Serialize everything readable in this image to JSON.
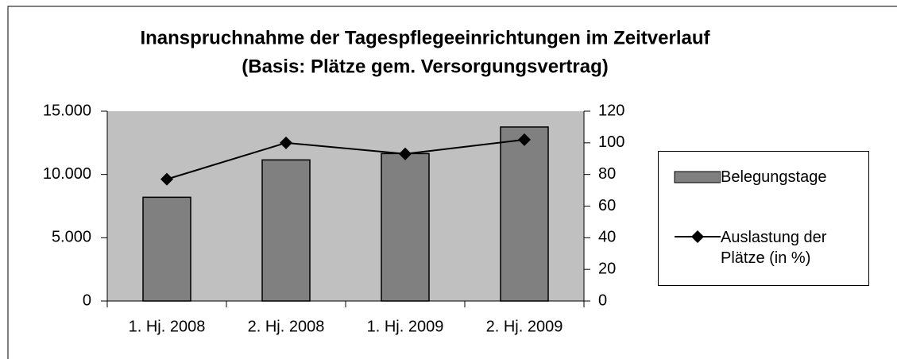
{
  "chart_data": {
    "type": "bar-line",
    "title": "Inanspruchnahme der Tagespflegeeinrichtungen im Zeitverlauf",
    "subtitle": "(Basis: Plätze gem. Versorgungsvertrag)",
    "categories": [
      "1. Hj. 2008",
      "2. Hj. 2008",
      "1. Hj. 2009",
      "2. Hj. 2009"
    ],
    "series": [
      {
        "name": "Belegungstage",
        "type": "bar",
        "color": "#808080",
        "values": [
          8200,
          11150,
          11650,
          13750
        ]
      },
      {
        "name": "Auslastung der Plätze (in %)",
        "type": "line",
        "axis": "y2",
        "color": "#000000",
        "values": [
          77,
          100,
          93,
          102
        ]
      }
    ],
    "ylim": [
      0,
      15000
    ],
    "yticks": [
      0,
      {
        "value": 5000,
        "label": "5.000"
      },
      {
        "value": 10000,
        "label": "10.000"
      },
      {
        "value": 15000,
        "label": "15.000"
      }
    ],
    "y2lim": [
      0,
      120
    ],
    "y2ticks": [
      0,
      20,
      40,
      60,
      80,
      100,
      120
    ],
    "legend": "right"
  }
}
